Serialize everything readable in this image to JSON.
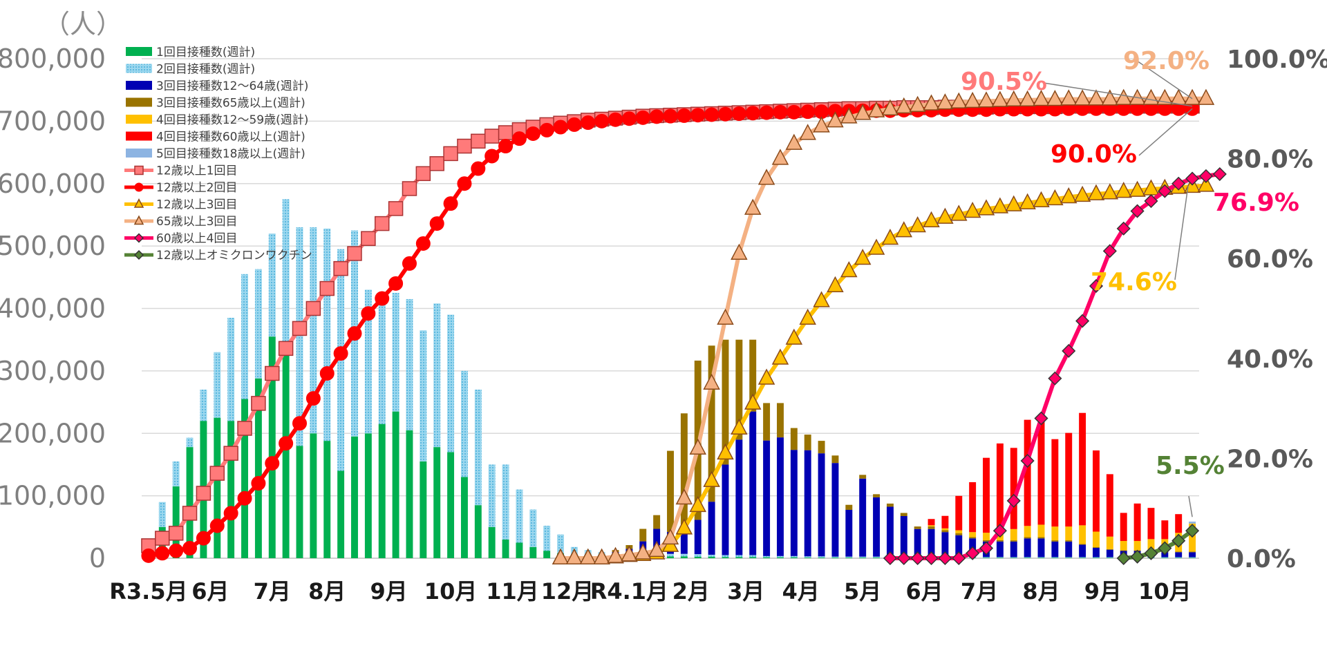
{
  "chart_data": {
    "type": "bar",
    "combo": "stacked weekly bars (left axis) + cumulative rate lines (right axis)",
    "grid": true,
    "legend_placement": "top-left",
    "y_unit_label": "（人）",
    "ylim": [
      0,
      800000
    ],
    "y_ticks": [
      "0",
      "100,000",
      "200,000",
      "300,000",
      "400,000",
      "500,000",
      "600,000",
      "700,000",
      "800,000"
    ],
    "y2lim": [
      0,
      100
    ],
    "y2_ticks": [
      "0.0%",
      "20.0%",
      "40.0%",
      "60.0%",
      "80.0%",
      "100.0%"
    ],
    "x_ticks": [
      {
        "label": "R3.5月",
        "week": 0
      },
      {
        "label": "6月",
        "week": 4.5
      },
      {
        "label": "7月",
        "week": 9
      },
      {
        "label": "8月",
        "week": 13
      },
      {
        "label": "9月",
        "week": 17.5
      },
      {
        "label": "10月",
        "week": 22
      },
      {
        "label": "11月",
        "week": 26.5
      },
      {
        "label": "12月",
        "week": 30.5
      },
      {
        "label": "R4.1月",
        "week": 35
      },
      {
        "label": "2月",
        "week": 39.5
      },
      {
        "label": "3月",
        "week": 43.5
      },
      {
        "label": "4月",
        "week": 47.5
      },
      {
        "label": "5月",
        "week": 52
      },
      {
        "label": "6月",
        "week": 56.5
      },
      {
        "label": "7月",
        "week": 60.5
      },
      {
        "label": "8月",
        "week": 65
      },
      {
        "label": "9月",
        "week": 69.5
      },
      {
        "label": "10月",
        "week": 74
      }
    ],
    "bar_series": [
      {
        "name": "1回目接種数(週計)",
        "color": "#00b050",
        "start": 0,
        "values": [
          10000,
          50000,
          115000,
          178000,
          220000,
          225000,
          220000,
          255000,
          288000,
          355000,
          330000,
          180000,
          200000,
          188000,
          140000,
          195000,
          200000,
          215000,
          235000,
          205000,
          155000,
          178000,
          170000,
          130000,
          85000,
          50000,
          30000,
          25000,
          18000,
          12000,
          8000,
          6000,
          5000,
          4000,
          3000,
          3000,
          3000,
          3000,
          3000,
          3000,
          2500,
          2500,
          2000,
          2000,
          2000,
          1500,
          1500,
          1500,
          1000,
          1000,
          1000,
          1000,
          1000,
          1000,
          1000,
          1000,
          800,
          800,
          800,
          800,
          800,
          800,
          800,
          700,
          700,
          700,
          700,
          700,
          700,
          600,
          600,
          600,
          600,
          600,
          600,
          600,
          600
        ]
      },
      {
        "name": "2回目接種数(週計)",
        "color": "#9bd7ee",
        "pattern": true,
        "start": 0,
        "values": [
          10000,
          40000,
          40000,
          15000,
          50000,
          105000,
          165000,
          200000,
          175000,
          165000,
          245000,
          350000,
          330000,
          340000,
          355000,
          330000,
          230000,
          210000,
          190000,
          210000,
          210000,
          230000,
          220000,
          170000,
          185000,
          100000,
          120000,
          85000,
          60000,
          40000,
          30000,
          12000,
          8000,
          6000,
          5000,
          4000,
          4000,
          4000,
          4000,
          4000,
          4000,
          3000,
          3000,
          3000,
          3000,
          2000,
          2000,
          2000,
          2000,
          2000,
          1500,
          1500,
          1500,
          1500,
          1500,
          1500,
          1000,
          1000,
          1000,
          1000,
          1000,
          1000,
          1000,
          1000,
          1000,
          1000,
          1000,
          1000,
          1000,
          1000,
          1000,
          1000,
          1000,
          1000,
          1000,
          1000,
          1000
        ]
      },
      {
        "name": "3回目接種数12～64歳(週計)",
        "color": "#0000b3",
        "start": 34,
        "values": [
          2000,
          8000,
          20000,
          40000,
          35000,
          45000,
          55000,
          85000,
          145000,
          185000,
          230000,
          185000,
          190000,
          170000,
          170000,
          165000,
          150000,
          75000,
          125000,
          95000,
          80000,
          65000,
          45000,
          45000,
          40000,
          35000,
          30000,
          25000,
          25000,
          25000,
          30000,
          30000,
          25000,
          25000,
          20000,
          15000,
          12000,
          10000,
          10000,
          8000,
          8000,
          8000,
          8000,
          8000,
          8000
        ]
      },
      {
        "name": "3回目接種数65歳以上(週計)",
        "color": "#997300",
        "start": 34,
        "values": [
          3000,
          6000,
          20000,
          22000,
          130000,
          180000,
          255000,
          250000,
          200000,
          160000,
          115000,
          60000,
          55000,
          35000,
          25000,
          20000,
          12000,
          8000,
          6000,
          5000,
          5000,
          5000,
          4000,
          4000,
          3000,
          3000,
          2000,
          2000,
          2000,
          2000,
          2000,
          2000,
          2000,
          2000,
          1000,
          1000,
          1000,
          1000,
          1000,
          1000,
          1000,
          1000,
          1000,
          1000,
          1000
        ]
      },
      {
        "name": "4回目接種数12～59歳(週計)",
        "color": "#ffc000",
        "start": 57,
        "values": [
          2000,
          3000,
          5000,
          8000,
          12000,
          15000,
          18000,
          18000,
          20000,
          22000,
          22000,
          30000,
          25000,
          20000,
          15000,
          15000,
          20000,
          20000,
          30000,
          45000,
          40000
        ]
      },
      {
        "name": "4回目接種数60歳以上(週計)",
        "color": "#ff0000",
        "start": 57,
        "values": [
          10000,
          20000,
          55000,
          80000,
          120000,
          140000,
          130000,
          170000,
          170000,
          140000,
          150000,
          180000,
          130000,
          100000,
          45000,
          60000,
          50000,
          30000,
          30000,
          0,
          0
        ]
      },
      {
        "name": "5回目接種数18歳以上(週計)",
        "color": "#8db4e2",
        "start": 76,
        "values": [
          3000
        ]
      }
    ],
    "line_series": [
      {
        "name": "12歳以上1回目",
        "color": "#ff7a7a",
        "marker": "square",
        "start": 0,
        "values": [
          2.5,
          4,
          5,
          9,
          13,
          17,
          21,
          26,
          31,
          37,
          42,
          46,
          50,
          54,
          58,
          61,
          64,
          67,
          70,
          74,
          77,
          79,
          81,
          82.5,
          83.5,
          84.5,
          85.2,
          85.8,
          86.3,
          86.8,
          87.1,
          87.4,
          87.7,
          87.9,
          88.1,
          88.3,
          88.5,
          88.6,
          88.7,
          88.8,
          88.9,
          89,
          89.1,
          89.2,
          89.3,
          89.4,
          89.5,
          89.6,
          89.7,
          89.8,
          89.9,
          90,
          90,
          90.1,
          90.1,
          90.2,
          90.2,
          90.2,
          90.3,
          90.3,
          90.3,
          90.3,
          90.4,
          90.4,
          90.4,
          90.4,
          90.4,
          90.5,
          90.5,
          90.5,
          90.5,
          90.5,
          90.5,
          90.5,
          90.5,
          90.5,
          90.5
        ]
      },
      {
        "name": "12歳以上2回目",
        "color": "#ff0000",
        "marker": "circle",
        "start": 0,
        "values": [
          0.5,
          1,
          1.5,
          2,
          4,
          6.5,
          9,
          12,
          15,
          19,
          23,
          27,
          32,
          37,
          41,
          45,
          49,
          52,
          55,
          59,
          63,
          67,
          71,
          75,
          78,
          80.5,
          82.5,
          84,
          85,
          85.7,
          86.3,
          86.8,
          87.2,
          87.5,
          87.8,
          88,
          88.2,
          88.4,
          88.5,
          88.6,
          88.7,
          88.8,
          88.9,
          89,
          89.1,
          89.2,
          89.3,
          89.3,
          89.4,
          89.4,
          89.5,
          89.5,
          89.6,
          89.6,
          89.6,
          89.7,
          89.7,
          89.7,
          89.8,
          89.8,
          89.8,
          89.8,
          89.9,
          89.9,
          89.9,
          89.9,
          89.9,
          90,
          90,
          90,
          90,
          90,
          90,
          90,
          90,
          90,
          90
        ]
      },
      {
        "name": "12歳以上3回目",
        "color": "#ffc000",
        "marker": "triangle",
        "start": 30,
        "values": [
          0,
          0,
          0,
          0,
          0.2,
          0.5,
          0.7,
          1,
          2.5,
          6,
          10.5,
          15.5,
          21,
          26,
          31,
          36,
          40,
          44,
          48,
          51.5,
          54.5,
          57.5,
          60,
          62,
          64,
          65.5,
          66.5,
          67.5,
          68.2,
          68.8,
          69.4,
          69.9,
          70.3,
          70.7,
          71.1,
          71.5,
          71.9,
          72.3,
          72.6,
          72.9,
          73.1,
          73.4,
          73.6,
          73.9,
          74,
          74.2,
          74.4,
          74.6
        ]
      },
      {
        "name": "65歳以上3回目",
        "color": "#f4b183",
        "marker": "triangle",
        "start": 30,
        "values": [
          0,
          0,
          0,
          0,
          0.3,
          0.6,
          1,
          1.5,
          4,
          12,
          22,
          35,
          48,
          61,
          70,
          76,
          80,
          83,
          85,
          86.5,
          87.5,
          88.3,
          89,
          89.5,
          89.9,
          90.3,
          90.6,
          90.9,
          91.1,
          91.3,
          91.4,
          91.5,
          91.6,
          91.7,
          91.7,
          91.8,
          91.8,
          91.9,
          91.9,
          91.9,
          91.9,
          92,
          92,
          92,
          92,
          92,
          92,
          92
        ]
      },
      {
        "name": "60歳以上4回目",
        "color": "#ff0066",
        "marker": "diamond",
        "start": 54,
        "values": [
          0,
          0,
          0,
          0,
          0,
          0,
          1,
          2,
          5.5,
          11.5,
          19.5,
          28,
          36,
          41.5,
          47.5,
          54.5,
          61.5,
          66,
          69.5,
          71.5,
          73.5,
          75,
          76,
          76.5,
          76.9
        ]
      },
      {
        "name": "12歳以上オミクロンワクチン",
        "color": "#548235",
        "marker": "diamond",
        "start": 71,
        "values": [
          0,
          0.3,
          1,
          2,
          3.5,
          5.5
        ]
      }
    ],
    "annotations": [
      {
        "text": "92.0%",
        "color": "#f4b183"
      },
      {
        "text": "90.5%",
        "color": "#ff7a7a"
      },
      {
        "text": "90.0%",
        "color": "#ff0000"
      },
      {
        "text": "76.9%",
        "color": "#ff0066"
      },
      {
        "text": "74.6%",
        "color": "#ffc000"
      },
      {
        "text": "5.5%",
        "color": "#548235"
      }
    ]
  }
}
